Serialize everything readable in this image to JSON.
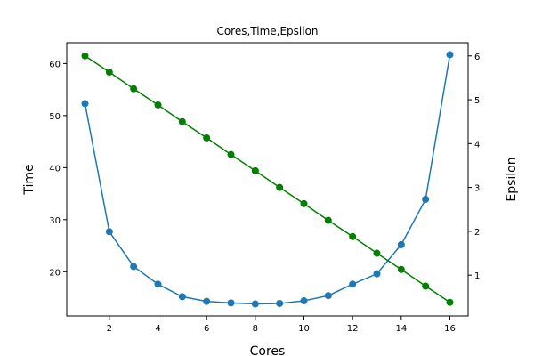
{
  "chart_data": {
    "type": "line",
    "title": "Cores,Time,Epsilon",
    "xlabel": "Cores",
    "ylabel": "Time",
    "y2label": "Epsilon",
    "xlim": [
      0.25,
      16.75
    ],
    "ylim": [
      11.5,
      64.0
    ],
    "y2lim": [
      0.07,
      6.3
    ],
    "x_ticks": [
      2,
      4,
      6,
      8,
      10,
      12,
      14,
      16
    ],
    "y_ticks": [
      20,
      30,
      40,
      50,
      60
    ],
    "y2_ticks": [
      1,
      2,
      3,
      4,
      5,
      6
    ],
    "x": [
      1,
      2,
      3,
      4,
      5,
      6,
      7,
      8,
      9,
      10,
      11,
      12,
      13,
      14,
      15,
      16
    ],
    "grid": false,
    "series": [
      {
        "axis": "left",
        "color": "#1f77b4",
        "marker": "circle",
        "values": [
          52.3,
          27.7,
          21.0,
          17.6,
          15.2,
          14.3,
          14.0,
          13.8,
          13.9,
          14.4,
          15.4,
          17.6,
          19.6,
          25.2,
          33.9,
          61.7
        ]
      },
      {
        "axis": "right",
        "color": "#008000",
        "marker": "circle",
        "values": [
          6.0,
          5.63,
          5.25,
          4.88,
          4.5,
          4.13,
          3.75,
          3.38,
          3.0,
          2.63,
          2.25,
          1.88,
          1.5,
          1.13,
          0.75,
          0.38
        ]
      }
    ]
  }
}
